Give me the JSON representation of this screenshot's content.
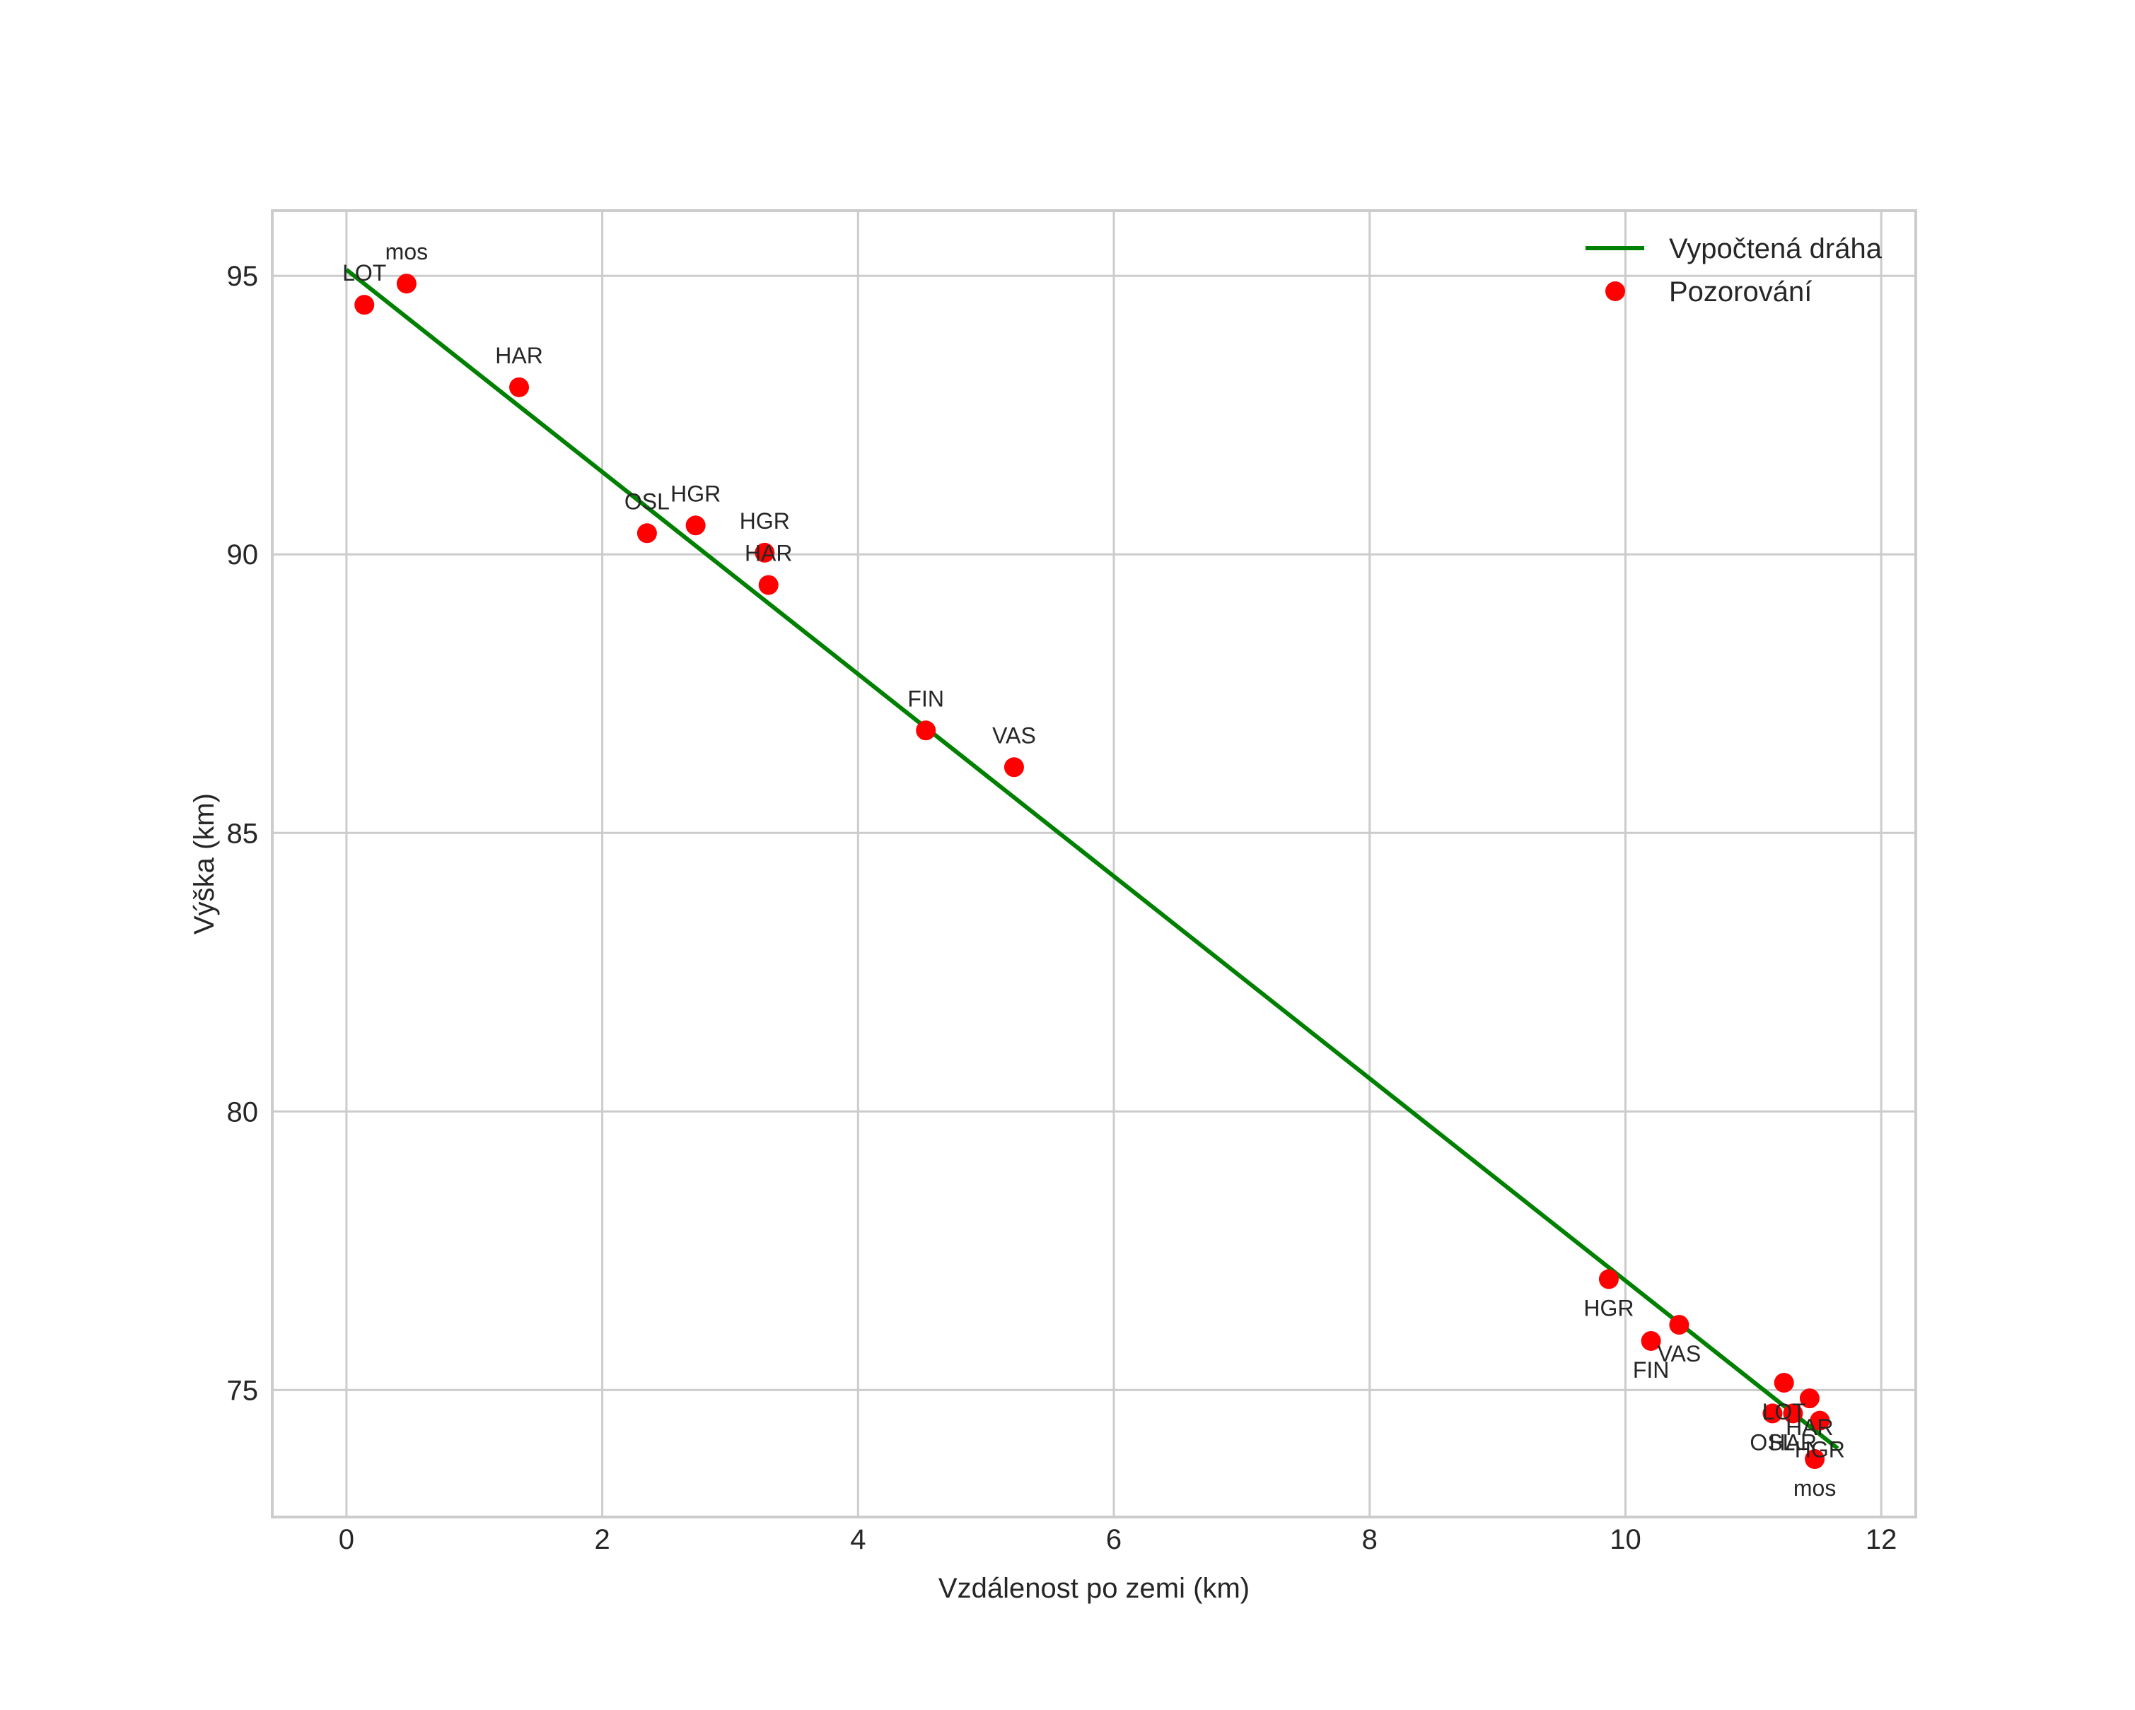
{
  "chart_data": {
    "type": "scatter",
    "title": "",
    "xlabel": "Vzdálenost po zemi (km)",
    "ylabel": "Výška (km)",
    "xlim": [
      -0.58,
      12.27
    ],
    "ylim": [
      72.72,
      96.17
    ],
    "grid": true,
    "legend_position": "upper right",
    "x_ticks": [
      0,
      2,
      4,
      6,
      8,
      10,
      12
    ],
    "y_ticks": [
      75,
      80,
      85,
      90,
      95
    ],
    "colors": {
      "trajectory": "#008000",
      "observations": "#ff0000",
      "grid": "#cccccc",
      "text": "#262626"
    },
    "legend": [
      {
        "label": "Vypočtená dráha",
        "kind": "line",
        "color": "#008000"
      },
      {
        "label": "Pozorování",
        "kind": "marker",
        "color": "#ff0000"
      }
    ],
    "series": [
      {
        "name": "Vypočtená dráha",
        "type": "line",
        "x": [
          0.0,
          11.66
        ],
        "y": [
          95.11,
          73.95
        ]
      },
      {
        "name": "Pozorování",
        "type": "scatter",
        "points": [
          {
            "label": "LOT",
            "x": 0.14,
            "y": 94.48,
            "label_pos": "above"
          },
          {
            "label": "mos",
            "x": 0.47,
            "y": 94.86,
            "label_pos": "above"
          },
          {
            "label": "HAR",
            "x": 1.35,
            "y": 93.0,
            "label_pos": "above"
          },
          {
            "label": "OSL",
            "x": 2.35,
            "y": 90.38,
            "label_pos": "above"
          },
          {
            "label": "HGR",
            "x": 2.73,
            "y": 90.52,
            "label_pos": "above"
          },
          {
            "label": "HGR",
            "x": 3.27,
            "y": 90.03,
            "label_pos": "above"
          },
          {
            "label": "HAR",
            "x": 3.3,
            "y": 89.45,
            "label_pos": "above"
          },
          {
            "label": "FIN",
            "x": 4.53,
            "y": 86.84,
            "label_pos": "above"
          },
          {
            "label": "VAS",
            "x": 5.22,
            "y": 86.18,
            "label_pos": "above"
          },
          {
            "label": "HGR",
            "x": 9.87,
            "y": 76.99,
            "label_pos": "below"
          },
          {
            "label": "VAS",
            "x": 10.42,
            "y": 76.17,
            "label_pos": "below"
          },
          {
            "label": "FIN",
            "x": 10.2,
            "y": 75.88,
            "label_pos": "below"
          },
          {
            "label": "LOT",
            "x": 11.24,
            "y": 75.13,
            "label_pos": "below"
          },
          {
            "label": "HAR",
            "x": 11.44,
            "y": 74.85,
            "label_pos": "below"
          },
          {
            "label": "OSL",
            "x": 11.15,
            "y": 74.58,
            "label_pos": "below"
          },
          {
            "label": "HAR",
            "x": 11.31,
            "y": 74.58,
            "label_pos": "below"
          },
          {
            "label": "HGR",
            "x": 11.52,
            "y": 74.45,
            "label_pos": "below"
          },
          {
            "label": "mos",
            "x": 11.48,
            "y": 73.76,
            "label_pos": "below"
          }
        ]
      }
    ]
  }
}
